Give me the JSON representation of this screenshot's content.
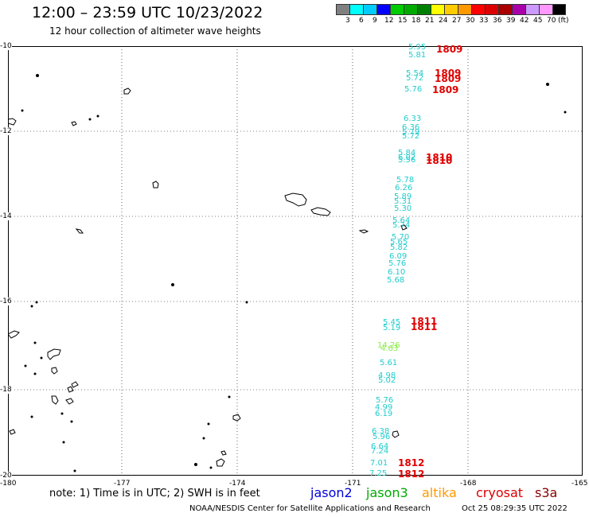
{
  "header": {
    "title": "12:00 – 23:59 UTC 10/23/2022",
    "subtitle": "12 hour collection of altimeter wave heights"
  },
  "legend": {
    "labels": [
      "3",
      "6",
      "9",
      "12",
      "15",
      "18",
      "21",
      "24",
      "27",
      "30",
      "33",
      "36",
      "39",
      "42",
      "45",
      "70",
      "(ft)"
    ],
    "colors": [
      "#808080",
      "#00ffff",
      "#00ccff",
      "#0000ff",
      "#00cc00",
      "#00aa00",
      "#008000",
      "#ffff00",
      "#ffcc00",
      "#ff9900",
      "#ff0000",
      "#dd0000",
      "#aa0000",
      "#aa00aa",
      "#cc99ff",
      "#ff99ff",
      "#000000"
    ]
  },
  "axes": {
    "y_labels": [
      "-10",
      "-12",
      "-14",
      "-16",
      "-18",
      "-20"
    ],
    "x_labels": [
      "-180",
      "-177",
      "-174",
      "-171",
      "-168",
      "-165"
    ]
  },
  "observations": [
    {
      "value": "5.95",
      "color": "#22cccc"
    },
    {
      "value": "5.81",
      "color": "#22cccc"
    },
    {
      "value": "5.54",
      "color": "#22cccc"
    },
    {
      "value": "5.72",
      "color": "#22cccc"
    },
    {
      "value": "5.76",
      "color": "#22cccc"
    },
    {
      "value": "6.33",
      "color": "#22cccc"
    },
    {
      "value": "6.36",
      "color": "#22cccc"
    },
    {
      "value": "5.79",
      "color": "#22cccc"
    },
    {
      "value": "5.72",
      "color": "#22cccc"
    },
    {
      "value": "5.84",
      "color": "#22cccc"
    },
    {
      "value": "6.02",
      "color": "#22cccc"
    },
    {
      "value": "5.56",
      "color": "#22cccc"
    },
    {
      "value": "5.78",
      "color": "#22cccc"
    },
    {
      "value": "6.26",
      "color": "#22cccc"
    },
    {
      "value": "5.89",
      "color": "#22cccc"
    },
    {
      "value": "5.31",
      "color": "#22cccc"
    },
    {
      "value": "5.30",
      "color": "#22cccc"
    },
    {
      "value": "5.64",
      "color": "#22cccc"
    },
    {
      "value": "5.74",
      "color": "#22cccc"
    },
    {
      "value": "5.70",
      "color": "#22cccc"
    },
    {
      "value": "5.65",
      "color": "#22cccc"
    },
    {
      "value": "5.82",
      "color": "#22cccc"
    },
    {
      "value": "6.09",
      "color": "#22cccc"
    },
    {
      "value": "5.76",
      "color": "#22cccc"
    },
    {
      "value": "6.10",
      "color": "#22cccc"
    },
    {
      "value": "5.68",
      "color": "#22cccc"
    },
    {
      "value": "5.45",
      "color": "#22cccc"
    },
    {
      "value": "5.19",
      "color": "#22cccc"
    },
    {
      "value": "14.26",
      "color": "#88ee44"
    },
    {
      "value": "4.63",
      "color": "#88ee44"
    },
    {
      "value": "5.61",
      "color": "#22cccc"
    },
    {
      "value": "4.98",
      "color": "#22cccc"
    },
    {
      "value": "5.02",
      "color": "#22cccc"
    },
    {
      "value": "5.76",
      "color": "#22cccc"
    },
    {
      "value": "4.99",
      "color": "#22cccc"
    },
    {
      "value": "6.19",
      "color": "#22cccc"
    },
    {
      "value": "6.38",
      "color": "#22cccc"
    },
    {
      "value": "5.96",
      "color": "#22cccc"
    },
    {
      "value": "6.64",
      "color": "#22cccc"
    },
    {
      "value": "7.24",
      "color": "#22cccc"
    },
    {
      "value": "7.01",
      "color": "#22cccc"
    },
    {
      "value": "7.25",
      "color": "#22cccc"
    }
  ],
  "pass_times": [
    "1809",
    "1809",
    "1809",
    "1809",
    "1810",
    "1810",
    "1811",
    "1811",
    "1812",
    "1812"
  ],
  "note": "note: 1) Time is in UTC; 2) SWH is in feet",
  "satellites": [
    {
      "name": "jason2",
      "color": "#0000dd"
    },
    {
      "name": "jason3",
      "color": "#00aa00"
    },
    {
      "name": "altika",
      "color": "#ff9900"
    },
    {
      "name": "cryosat",
      "color": "#dd0000"
    },
    {
      "name": "s3a",
      "color": "#880000"
    }
  ],
  "footer": {
    "credit": "NOAA/NESDIS Center for Satellite Applications and Research",
    "timestamp": "Oct 25 08:29:35 UTC 2022"
  }
}
